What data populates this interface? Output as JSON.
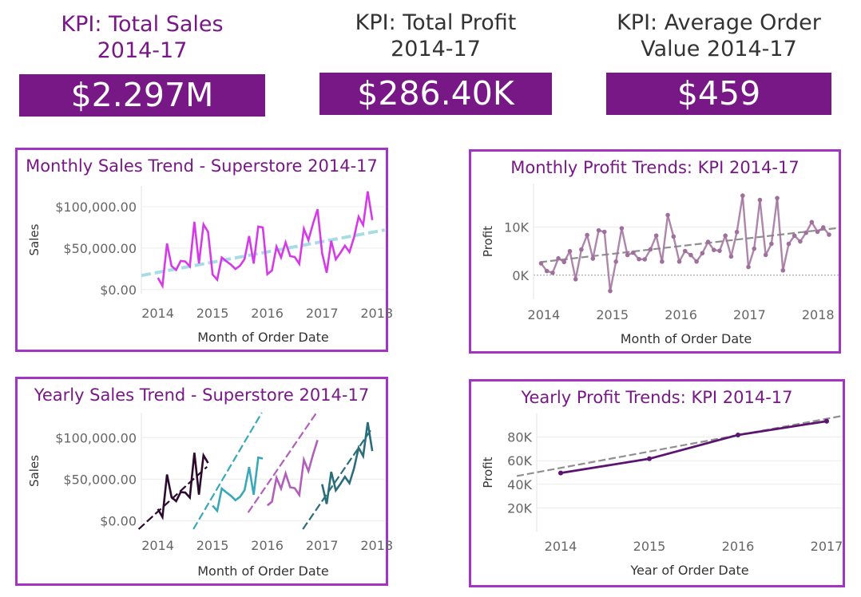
{
  "kpis": [
    {
      "title": "KPI: Total Sales\n2014-17",
      "value": "$2.297M",
      "title_color": "#781887"
    },
    {
      "title": "KPI: Total Profit\n2014-17",
      "value": "$286.40K",
      "title_color": "#333333"
    },
    {
      "title": "KPI: Average Order\nValue 2014-17",
      "value": "$459",
      "title_color": "#333333"
    }
  ],
  "colors": {
    "kpi_box": "#781887",
    "panel_border": "#a334c4",
    "sales_line": "#d63ae8",
    "sales_trend": "#a6dce3",
    "profit_point": "#a0709c",
    "profit_trend": "#8f8f8f",
    "yearly_profit_line": "#5b1470",
    "year_2014": "#2c0a2e",
    "year_2015": "#3aa8b8",
    "year_2016": "#b060b8",
    "year_2017": "#2a6e7a"
  },
  "chart_data": [
    {
      "id": "monthly_sales",
      "type": "line",
      "title": "Monthly Sales Trend - Superstore 2014-17",
      "xlabel": "Month of Order Date",
      "ylabel": "Sales",
      "x_ticks": [
        "2014",
        "2015",
        "2016",
        "2017",
        "2018"
      ],
      "y_ticks": [
        "$0.00",
        "$50,000.00",
        "$100,000.00"
      ],
      "y_tick_values": [
        0,
        50000,
        100000
      ],
      "ylim": [
        -5000,
        125000
      ],
      "xlim": [
        2013.7,
        2018.15
      ],
      "trend_line": {
        "start": 17000,
        "end": 72000
      },
      "values": [
        14237,
        4520,
        55691,
        28295,
        23648,
        34595,
        33946,
        27909,
        81777,
        31453,
        78629,
        69546,
        18174,
        11951,
        38726,
        34195,
        30132,
        24797,
        28765,
        36898,
        64596,
        31405,
        75973,
        74920,
        18543,
        22979,
        51716,
        38750,
        56988,
        40344,
        39262,
        31115,
        73410,
        59688,
        79412,
        96999,
        43971,
        20301,
        58872,
        36522,
        44261,
        52982,
        45264,
        63121,
        87867,
        77777,
        118448,
        83829
      ]
    },
    {
      "id": "monthly_profit",
      "type": "line",
      "title": "Monthly Profit Trends: KPI 2014-17",
      "xlabel": "Month of Order Date",
      "ylabel": "Profit",
      "x_ticks": [
        "2014",
        "2015",
        "2016",
        "2017",
        "2018"
      ],
      "y_ticks": [
        "0K",
        "10K"
      ],
      "y_tick_values": [
        0,
        10000
      ],
      "ylim": [
        -5000,
        19000
      ],
      "xlim": [
        2013.85,
        2018.3
      ],
      "trend_line": {
        "start": 2700,
        "end": 9800
      },
      "values": [
        2450,
        862,
        498,
        3489,
        2738,
        4976,
        -841,
        5318,
        8328,
        3448,
        9292,
        8983,
        -3281,
        2813,
        9732,
        4188,
        4668,
        3335,
        3289,
        5355,
        8210,
        2817,
        12474,
        8016,
        2824,
        5004,
        4170,
        2839,
        4562,
        6900,
        5234,
        5068,
        8209,
        3880,
        8952,
        16500,
        1700,
        5500,
        15600,
        4200,
        6500,
        16000,
        1000,
        6500,
        8200,
        7000,
        8800,
        11000,
        9000,
        9900,
        8400
      ]
    },
    {
      "id": "yearly_sales",
      "type": "line",
      "title": "Yearly Sales Trend - Superstore 2014-17",
      "xlabel": "Month of Order Date",
      "ylabel": "Sales",
      "x_ticks": [
        "2014",
        "2015",
        "2016",
        "2017",
        "2018"
      ],
      "y_ticks": [
        "$0.00",
        "$50,000.00",
        "$100,000.00"
      ],
      "y_tick_values": [
        0,
        50000,
        100000
      ],
      "ylim": [
        -10000,
        130000
      ],
      "xlim": [
        2013.7,
        2018.15
      ],
      "series": [
        {
          "name": "2014",
          "color_key": "year_2014",
          "trend": [
            -10000,
            65000
          ],
          "values": [
            14237,
            4520,
            55691,
            28295,
            23648,
            34595,
            33946,
            27909,
            81777,
            31453,
            78629,
            69546
          ]
        },
        {
          "name": "2015",
          "color_key": "year_2015",
          "trend": [
            -10000,
            130000
          ],
          "values": [
            18174,
            11951,
            38726,
            34195,
            30132,
            24797,
            28765,
            36898,
            64596,
            31405,
            75973,
            74920
          ]
        },
        {
          "name": "2016",
          "color_key": "year_2016",
          "trend": [
            10000,
            130000
          ],
          "values": [
            18543,
            22979,
            51716,
            38750,
            56988,
            40344,
            39262,
            31115,
            73410,
            59688,
            79412,
            96999
          ]
        },
        {
          "name": "2017",
          "color_key": "year_2017",
          "trend": [
            -10000,
            110000
          ],
          "values": [
            43971,
            20301,
            58872,
            36522,
            44261,
            52982,
            45264,
            63121,
            87867,
            77777,
            118448,
            83829
          ]
        }
      ]
    },
    {
      "id": "yearly_profit",
      "type": "line",
      "title": "Yearly Profit Trends: KPI 2014-17",
      "xlabel": "Year of Order Date",
      "ylabel": "Profit",
      "categories": [
        "2014",
        "2015",
        "2016",
        "2017"
      ],
      "values": [
        49544,
        61619,
        81795,
        93439
      ],
      "y_ticks": [
        "20K",
        "40K",
        "60K",
        "80K"
      ],
      "y_tick_values": [
        20000,
        40000,
        60000,
        80000
      ],
      "ylim": [
        0,
        100000
      ],
      "trend_line": {
        "start": 47000,
        "end": 98000
      }
    }
  ]
}
